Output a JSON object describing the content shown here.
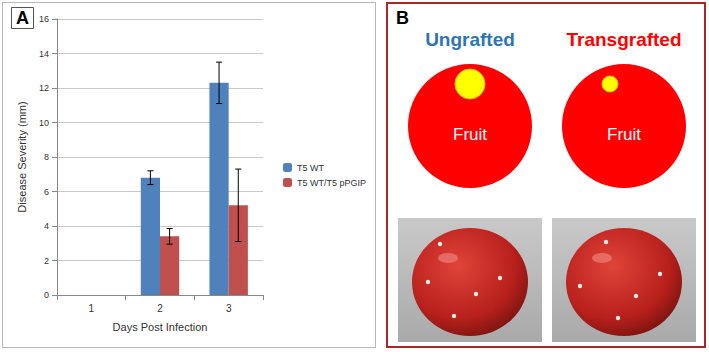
{
  "chart_data": {
    "type": "bar",
    "title": "A",
    "categories": [
      "1",
      "2",
      "3"
    ],
    "x_label": "Days Post Infection",
    "y_label": "Disease Severity (mm)",
    "series": [
      {
        "name": "T5 WT",
        "color": "#4f81bd",
        "values": [
          null,
          6.8,
          12.3
        ],
        "errors": [
          null,
          0.4,
          1.2
        ]
      },
      {
        "name": "T5 WT/T5 pPGIP",
        "color": "#c0504d",
        "values": [
          null,
          3.4,
          5.2
        ],
        "errors": [
          null,
          0.45,
          2.1
        ]
      }
    ],
    "ylim": [
      0,
      16
    ],
    "yticks": [
      0,
      2,
      4,
      6,
      8,
      10,
      12,
      14,
      16
    ],
    "grid": true,
    "legend": "right"
  },
  "panel_b": {
    "label": "B",
    "columns": [
      {
        "title": "Ungrafted",
        "circle_text": "Fruit"
      },
      {
        "title": "Transgrafted",
        "circle_text": "Fruit"
      }
    ]
  }
}
